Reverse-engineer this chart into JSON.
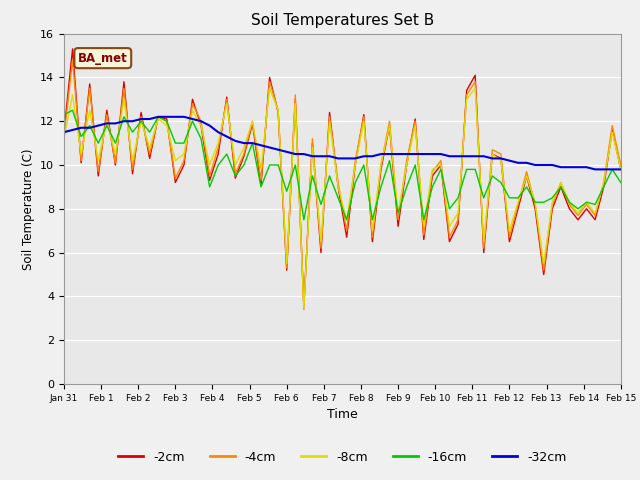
{
  "title": "Soil Temperatures Set B",
  "xlabel": "Time",
  "ylabel": "Soil Temperature (C)",
  "ylim": [
    0,
    16
  ],
  "yticks": [
    0,
    2,
    4,
    6,
    8,
    10,
    12,
    14,
    16
  ],
  "annotation": "BA_met",
  "background_color": "#e8e8e8",
  "legend_labels": [
    "-2cm",
    "-4cm",
    "-8cm",
    "-16cm",
    "-32cm"
  ],
  "line_colors": [
    "#dd0000",
    "#ff8800",
    "#dddd00",
    "#00cc00",
    "#0000dd"
  ],
  "xtick_labels": [
    "Jan 31",
    "Feb 1",
    "Feb 2",
    "Feb 3",
    "Feb 4",
    "Feb 5",
    "Feb 6",
    "Feb 7",
    "Feb 8",
    "Feb 9",
    "Feb 10",
    "Feb 11",
    "Feb 12",
    "Feb 13",
    "Feb 14",
    "Feb 15"
  ],
  "series": {
    "neg2cm": [
      11.5,
      15.3,
      10.1,
      13.7,
      9.5,
      12.5,
      10.0,
      13.8,
      9.6,
      12.4,
      10.3,
      12.2,
      12.1,
      9.2,
      10.0,
      13.0,
      11.8,
      9.3,
      10.5,
      13.1,
      9.4,
      10.4,
      11.9,
      9.1,
      14.0,
      12.4,
      5.2,
      13.0,
      3.6,
      11.0,
      6.0,
      12.4,
      9.0,
      6.7,
      10.0,
      12.3,
      6.5,
      9.8,
      11.8,
      7.2,
      10.0,
      12.1,
      6.6,
      9.5,
      10.0,
      6.5,
      7.3,
      13.4,
      14.1,
      6.0,
      10.5,
      10.3,
      6.5,
      8.0,
      9.5,
      8.0,
      5.0,
      8.0,
      9.0,
      8.0,
      7.5,
      8.0,
      7.5,
      9.0,
      11.6,
      9.8
    ],
    "neg4cm": [
      11.3,
      14.8,
      10.2,
      13.5,
      9.7,
      12.3,
      10.1,
      13.5,
      9.8,
      12.2,
      10.5,
      12.2,
      12.0,
      9.4,
      10.2,
      12.8,
      12.0,
      9.5,
      10.8,
      13.0,
      9.6,
      10.5,
      12.0,
      9.3,
      13.8,
      12.5,
      5.3,
      13.2,
      3.4,
      11.2,
      6.2,
      12.2,
      9.2,
      7.0,
      10.2,
      12.2,
      6.7,
      10.0,
      12.0,
      7.5,
      10.2,
      12.0,
      6.8,
      9.7,
      10.2,
      6.7,
      7.5,
      13.2,
      13.8,
      6.2,
      10.7,
      10.5,
      6.7,
      8.2,
      9.7,
      8.2,
      5.2,
      8.2,
      9.2,
      8.2,
      7.7,
      8.2,
      7.7,
      9.2,
      11.8,
      10.0
    ],
    "neg8cm": [
      11.2,
      13.2,
      10.5,
      12.5,
      10.2,
      12.0,
      10.5,
      13.0,
      10.2,
      12.0,
      10.8,
      12.1,
      11.8,
      10.2,
      10.5,
      12.5,
      11.8,
      10.0,
      11.0,
      12.8,
      10.0,
      10.8,
      12.0,
      9.8,
      13.5,
      12.5,
      5.5,
      12.8,
      3.5,
      10.8,
      6.5,
      12.0,
      9.0,
      7.5,
      10.0,
      12.0,
      7.0,
      10.0,
      11.8,
      7.8,
      10.0,
      11.8,
      7.2,
      9.8,
      10.0,
      7.2,
      7.8,
      13.0,
      13.5,
      6.5,
      10.5,
      10.2,
      7.0,
      8.3,
      9.5,
      8.3,
      5.5,
      8.3,
      9.2,
      8.3,
      7.8,
      8.3,
      7.8,
      9.2,
      11.5,
      9.8
    ],
    "neg16cm": [
      12.3,
      12.5,
      11.3,
      11.8,
      11.0,
      11.8,
      11.0,
      12.2,
      11.5,
      12.0,
      11.5,
      12.2,
      12.0,
      11.0,
      11.0,
      12.0,
      11.2,
      9.0,
      10.0,
      10.5,
      9.5,
      10.0,
      11.0,
      9.0,
      10.0,
      10.0,
      8.8,
      10.0,
      7.5,
      9.5,
      8.2,
      9.5,
      8.5,
      7.5,
      9.2,
      10.0,
      7.5,
      9.0,
      10.2,
      7.8,
      9.0,
      10.0,
      7.5,
      9.0,
      9.8,
      8.0,
      8.5,
      9.8,
      9.8,
      8.5,
      9.5,
      9.2,
      8.5,
      8.5,
      9.0,
      8.3,
      8.3,
      8.5,
      9.0,
      8.3,
      8.0,
      8.3,
      8.2,
      9.0,
      9.8,
      9.2
    ],
    "neg32cm": [
      11.5,
      11.6,
      11.7,
      11.7,
      11.8,
      11.9,
      11.9,
      12.0,
      12.0,
      12.1,
      12.1,
      12.2,
      12.2,
      12.2,
      12.2,
      12.1,
      12.0,
      11.8,
      11.5,
      11.3,
      11.1,
      11.0,
      11.0,
      10.9,
      10.8,
      10.7,
      10.6,
      10.5,
      10.5,
      10.4,
      10.4,
      10.4,
      10.3,
      10.3,
      10.3,
      10.4,
      10.4,
      10.5,
      10.5,
      10.5,
      10.5,
      10.5,
      10.5,
      10.5,
      10.5,
      10.4,
      10.4,
      10.4,
      10.4,
      10.4,
      10.3,
      10.3,
      10.2,
      10.1,
      10.1,
      10.0,
      10.0,
      10.0,
      9.9,
      9.9,
      9.9,
      9.9,
      9.8,
      9.8,
      9.8,
      9.8
    ]
  }
}
